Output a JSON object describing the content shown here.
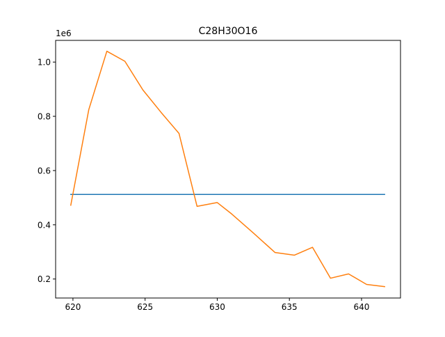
{
  "chart_data": {
    "type": "line",
    "title": "C28H30O16",
    "xlabel": "",
    "ylabel": "",
    "y_offset_label": "1e6",
    "xlim": [
      618.8,
      642.7
    ],
    "ylim": [
      0.13,
      1.08
    ],
    "x_ticks": [
      620,
      625,
      630,
      635,
      640
    ],
    "y_ticks": [
      0.2,
      0.4,
      0.6,
      0.8,
      1.0
    ],
    "x_tick_labels": [
      "620",
      "625",
      "630",
      "635",
      "640"
    ],
    "y_tick_labels": [
      "0.2",
      "0.4",
      "0.6",
      "0.8",
      "1.0"
    ],
    "grid": false,
    "series": [
      {
        "color": "#1f77b4",
        "x": [
          619.85,
          641.6
        ],
        "y": [
          0.512,
          0.512
        ]
      },
      {
        "color": "#ff7f0e",
        "x": [
          619.85,
          621.1,
          622.35,
          623.6,
          624.85,
          626.1,
          627.35,
          628.6,
          630.0,
          631.0,
          632.5,
          634.0,
          635.35,
          636.6,
          637.85,
          639.1,
          640.35,
          641.6
        ],
        "y": [
          0.472,
          0.825,
          1.04,
          1.003,
          0.897,
          0.815,
          0.737,
          0.468,
          0.482,
          0.44,
          0.37,
          0.298,
          0.288,
          0.317,
          0.203,
          0.219,
          0.18,
          0.172
        ]
      }
    ]
  }
}
